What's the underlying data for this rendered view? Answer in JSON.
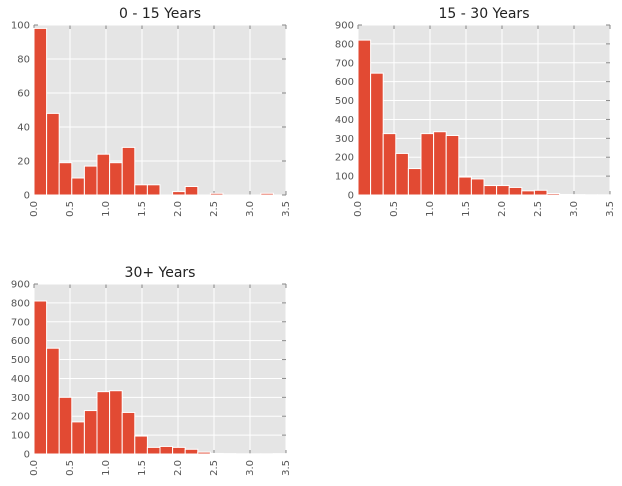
{
  "chart_data": [
    {
      "type": "bar",
      "title": "0 - 15 Years",
      "xlim": [
        0,
        3.5
      ],
      "ylim": [
        0,
        100
      ],
      "grid": true,
      "bin_width": 0.175,
      "bins_start": [
        0,
        0.175,
        0.35,
        0.525,
        0.7,
        0.875,
        1.05,
        1.225,
        1.4,
        1.575,
        1.75,
        1.925,
        2.1,
        2.275,
        2.45,
        2.625,
        2.8,
        2.975,
        3.15,
        3.325
      ],
      "values": [
        98,
        48,
        19,
        10,
        17,
        24,
        19,
        28,
        6,
        6,
        0,
        2,
        5,
        0,
        1,
        0,
        0,
        0,
        1,
        0
      ],
      "xticks": [
        "0.0",
        "0.5",
        "1.0",
        "1.5",
        "2.0",
        "2.5",
        "3.0",
        "3.5"
      ],
      "yticks": [
        "0",
        "20",
        "40",
        "60",
        "80",
        "100"
      ]
    },
    {
      "type": "bar",
      "title": "15 - 30 Years",
      "xlim": [
        0,
        3.5
      ],
      "ylim": [
        0,
        900
      ],
      "grid": true,
      "bin_width": 0.175,
      "bins_start": [
        0,
        0.175,
        0.35,
        0.525,
        0.7,
        0.875,
        1.05,
        1.225,
        1.4,
        1.575,
        1.75,
        1.925,
        2.1,
        2.275,
        2.45,
        2.625,
        2.8,
        2.975,
        3.15,
        3.325
      ],
      "values": [
        820,
        645,
        325,
        220,
        140,
        325,
        335,
        315,
        95,
        85,
        50,
        50,
        40,
        22,
        25,
        8,
        3,
        2,
        1,
        1
      ],
      "xticks": [
        "0.0",
        "0.5",
        "1.0",
        "1.5",
        "2.0",
        "2.5",
        "3.0",
        "3.5"
      ],
      "yticks": [
        "0",
        "100",
        "200",
        "300",
        "400",
        "500",
        "600",
        "700",
        "800",
        "900"
      ]
    },
    {
      "type": "bar",
      "title": "30+ Years",
      "xlim": [
        0,
        3.5
      ],
      "ylim": [
        0,
        900
      ],
      "grid": true,
      "bin_width": 0.175,
      "bins_start": [
        0,
        0.175,
        0.35,
        0.525,
        0.7,
        0.875,
        1.05,
        1.225,
        1.4,
        1.575,
        1.75,
        1.925,
        2.1,
        2.275,
        2.45,
        2.625,
        2.8,
        2.975,
        3.15,
        3.325
      ],
      "values": [
        810,
        560,
        300,
        170,
        230,
        330,
        335,
        220,
        95,
        35,
        40,
        35,
        25,
        10,
        3,
        2,
        1,
        1,
        1,
        2
      ],
      "xticks": [
        "0.0",
        "0.5",
        "1.0",
        "1.5",
        "2.0",
        "2.5",
        "3.0",
        "3.5"
      ],
      "yticks": [
        "0",
        "100",
        "200",
        "300",
        "400",
        "500",
        "600",
        "700",
        "800",
        "900"
      ]
    }
  ],
  "colors": {
    "bar": "#E24A33",
    "bar_edge": "#ffffff",
    "plot_bg": "#E5E5E5",
    "grid": "#ffffff",
    "tick_text": "#555555",
    "title_text": "#222222"
  }
}
